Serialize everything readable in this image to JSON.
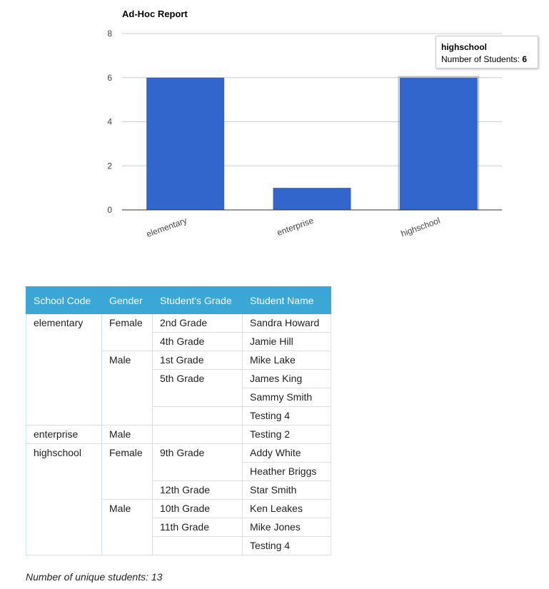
{
  "chart_data": {
    "type": "bar",
    "title": "Ad-Hoc Report",
    "categories": [
      "elementary",
      "enterprise",
      "highschool"
    ],
    "series": [
      {
        "name": "Number of Students",
        "values": [
          6,
          1,
          6
        ]
      }
    ],
    "ylim": [
      0,
      8
    ],
    "yticks": [
      0,
      2,
      4,
      6,
      8
    ],
    "grid": true,
    "bar_color": "#3366cc",
    "highlighted_category": "highschool"
  },
  "tooltip": {
    "title": "highschool",
    "label": "Number of Students: ",
    "value": "6"
  },
  "table": {
    "headers": [
      "School Code",
      "Gender",
      "Student's Grade",
      "Student Name"
    ],
    "rows": [
      [
        "elementary",
        "Female",
        "2nd Grade",
        "Sandra Howard"
      ],
      [
        "",
        "",
        "4th Grade",
        "Jamie Hill"
      ],
      [
        "",
        "Male",
        "1st Grade",
        "Mike Lake"
      ],
      [
        "",
        "",
        "5th Grade",
        "James King"
      ],
      [
        "",
        "",
        "",
        "Sammy Smith"
      ],
      [
        "",
        "",
        "",
        "Testing 4"
      ],
      [
        "enterprise",
        "Male",
        "",
        "Testing 2"
      ],
      [
        "highschool",
        "Female",
        "9th Grade",
        "Addy White"
      ],
      [
        "",
        "",
        "",
        "Heather Briggs"
      ],
      [
        "",
        "",
        "12th Grade",
        "Star Smith"
      ],
      [
        "",
        "Male",
        "10th Grade",
        "Ken Leakes"
      ],
      [
        "",
        "",
        "11th Grade",
        "Mike Jones"
      ],
      [
        "",
        "",
        "",
        "Testing 4"
      ]
    ]
  },
  "footnote": "Number of unique students: 13"
}
